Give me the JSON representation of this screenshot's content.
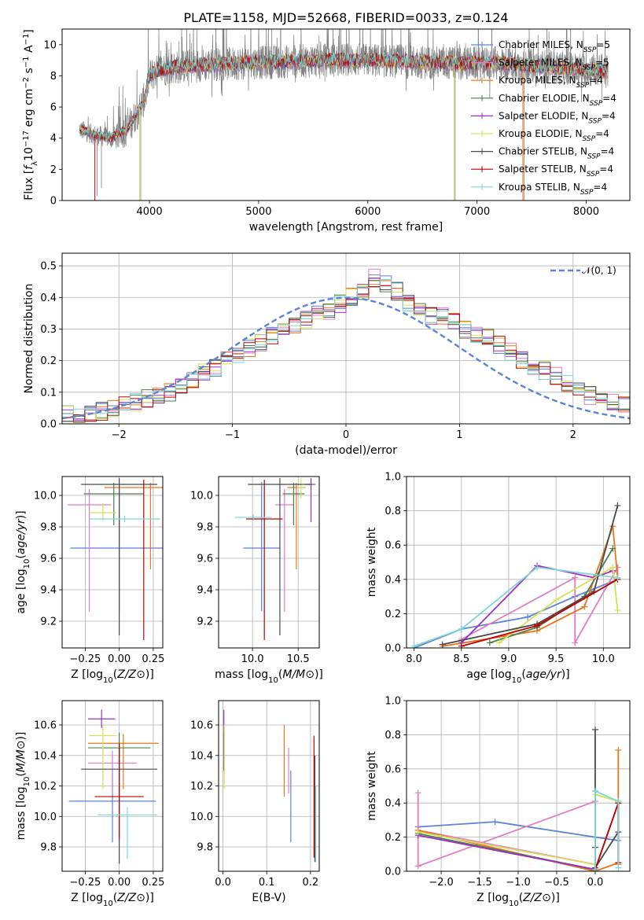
{
  "title": "PLATE=1158, MJD=52668, FIBERID=0033, z=0.124",
  "colors": {
    "Chabrier MILES": "#5b84d6",
    "Salpeter MILES": "#e07fbf",
    "Kroupa MILES": "#e8761f",
    "Chabrier ELODIE": "#4d7d4d",
    "Salpeter ELODIE": "#9b30c9",
    "Kroupa ELODIE": "#d4e05a",
    "Chabrier STELIB": "#4a4a4a",
    "Salpeter STELIB": "#c00000",
    "Kroupa STELIB": "#7fd6d6",
    "data": "#808080",
    "normal": "#5b84d6"
  },
  "chart_data": [
    {
      "id": "spectrum",
      "type": "line",
      "title": "PLATE=1158, MJD=52668, FIBERID=0033, z=0.124",
      "xlabel": "wavelength [Angstrom, rest frame]",
      "ylabel": "Flux [f_λ 10^-17 erg cm^-2 s^-1 A^-1]",
      "xlim": [
        3200,
        8400
      ],
      "ylim": [
        0,
        11
      ],
      "xticks": [
        4000,
        5000,
        6000,
        7000,
        8000
      ],
      "yticks": [
        0,
        2,
        4,
        6,
        8,
        10
      ],
      "legend_position": "upper-right",
      "legend": [
        {
          "base": "Chabrier MILES, N",
          "sub": "SSP",
          "suffix": "=5"
        },
        {
          "base": "Salpeter MILES, N",
          "sub": "SSP",
          "suffix": "=5"
        },
        {
          "base": "Kroupa MILES, N",
          "sub": "SSP",
          "suffix": "=4"
        },
        {
          "base": "Chabrier ELODIE, N",
          "sub": "SSP",
          "suffix": "=4"
        },
        {
          "base": "Salpeter ELODIE, N",
          "sub": "SSP",
          "suffix": "=4"
        },
        {
          "base": "Kroupa ELODIE, N",
          "sub": "SSP",
          "suffix": "=4"
        },
        {
          "base": "Chabrier STELIB, N",
          "sub": "SSP",
          "suffix": "=4"
        },
        {
          "base": "Salpeter STELIB, N",
          "sub": "SSP",
          "suffix": "=4"
        },
        {
          "base": "Kroupa STELIB, N",
          "sub": "SSP",
          "suffix": "=4"
        }
      ],
      "continuum_knots": [
        [
          3350,
          4.6
        ],
        [
          3500,
          4.2
        ],
        [
          3650,
          4.0
        ],
        [
          3800,
          4.6
        ],
        [
          3900,
          5.8
        ],
        [
          3960,
          6.6
        ],
        [
          4000,
          8.0
        ],
        [
          4100,
          8.4
        ],
        [
          4300,
          8.6
        ],
        [
          4500,
          8.7
        ],
        [
          4800,
          8.8
        ],
        [
          5200,
          8.9
        ],
        [
          5600,
          9.0
        ],
        [
          6000,
          9.0
        ],
        [
          6400,
          8.9
        ],
        [
          6800,
          8.8
        ],
        [
          7200,
          8.8
        ],
        [
          7600,
          8.6
        ],
        [
          8000,
          8.4
        ],
        [
          8200,
          8.3
        ]
      ],
      "data_range": [
        3360,
        8200
      ],
      "model_range": [
        3360,
        8200
      ],
      "spikes": [
        [
          3520,
          0.3
        ],
        [
          3560,
          0.8
        ],
        [
          3920,
          0.0
        ],
        [
          6800,
          0.0
        ],
        [
          7430,
          0.0
        ]
      ]
    },
    {
      "id": "residuals",
      "type": "histogram",
      "xlabel": "(data-model)/error",
      "ylabel": "Normed distribution",
      "xlim": [
        -2.5,
        2.5
      ],
      "ylim": [
        0,
        0.54
      ],
      "xticks": [
        -2,
        -1,
        0,
        1,
        2
      ],
      "yticks": [
        0.0,
        0.1,
        0.2,
        0.3,
        0.4,
        0.5
      ],
      "grid": true,
      "legend_position": "upper-right",
      "legend": [
        "𝒩(0, 1)"
      ],
      "bin_width": 0.1,
      "bin_start": -2.6,
      "base_values": [
        0.03,
        0.03,
        0.03,
        0.03,
        0.04,
        0.05,
        0.06,
        0.07,
        0.08,
        0.09,
        0.1,
        0.12,
        0.14,
        0.16,
        0.18,
        0.2,
        0.22,
        0.24,
        0.26,
        0.28,
        0.3,
        0.31,
        0.33,
        0.35,
        0.36,
        0.38,
        0.4,
        0.42,
        0.46,
        0.44,
        0.42,
        0.38,
        0.36,
        0.34,
        0.34,
        0.32,
        0.3,
        0.28,
        0.27,
        0.25,
        0.23,
        0.2,
        0.18,
        0.17,
        0.15,
        0.13,
        0.11,
        0.09,
        0.08,
        0.07,
        0.06,
        0.05,
        0.05,
        0.04
      ]
    },
    {
      "id": "age-vs-Z",
      "type": "errorbar",
      "xlabel": "Z [log10(Z/Z⊙)]",
      "ylabel": "age [log10(age/yr)]",
      "xlim": [
        -0.42,
        0.32
      ],
      "ylim": [
        9.03,
        10.12
      ],
      "xticks": [
        -0.25,
        0.0,
        0.25
      ],
      "yticks": [
        9.2,
        9.4,
        9.6,
        9.8,
        10.0
      ],
      "grid": true,
      "points": [
        {
          "series": "Chabrier MILES",
          "x": 0.0,
          "xerr": 0.36,
          "y": 9.665,
          "yerr": [
            0.4,
            0.42
          ]
        },
        {
          "series": "Salpeter MILES",
          "x": -0.22,
          "xerr": 0.16,
          "y": 9.94,
          "yerr": [
            0.68,
            0.1
          ]
        },
        {
          "series": "Kroupa MILES",
          "x": 0.23,
          "xerr": 0.34,
          "y": 10.05,
          "yerr": [
            0.52,
            0.03
          ]
        },
        {
          "series": "Chabrier ELODIE",
          "x": -0.04,
          "xerr": 0.22,
          "y": 10.01,
          "yerr": [
            0.2,
            0.07
          ]
        },
        {
          "series": "Salpeter ELODIE",
          "x": -0.13,
          "xerr": 0.0,
          "y": 10.08,
          "yerr": [
            0.0,
            0.0
          ]
        },
        {
          "series": "Kroupa ELODIE",
          "x": -0.12,
          "xerr": 0.1,
          "y": 9.89,
          "yerr": [
            0.05,
            0.06
          ]
        },
        {
          "series": "Chabrier STELIB",
          "x": 0.0,
          "xerr": 0.28,
          "y": 10.07,
          "yerr": [
            0.96,
            0.04
          ]
        },
        {
          "series": "Salpeter STELIB",
          "x": 0.18,
          "xerr": 0.0,
          "y": 9.85,
          "yerr": [
            0.77,
            0.25
          ]
        },
        {
          "series": "Kroupa STELIB",
          "x": 0.04,
          "xerr": 0.26,
          "y": 9.85,
          "yerr": [
            0.02,
            0.02
          ]
        }
      ]
    },
    {
      "id": "age-vs-mass",
      "type": "errorbar",
      "xlabel": "mass [log10(M/M⊙)]",
      "ylabel": "",
      "xlim": [
        9.63,
        10.73
      ],
      "ylim": [
        9.03,
        10.12
      ],
      "xticks": [
        10.0,
        10.5
      ],
      "yticks": [
        9.2,
        9.4,
        9.6,
        9.8,
        10.0
      ],
      "grid": true,
      "points": [
        {
          "series": "Chabrier MILES",
          "x": 10.1,
          "xerr": 0.2,
          "y": 9.665,
          "yerr": [
            0.4,
            0.42
          ]
        },
        {
          "series": "Salpeter MILES",
          "x": 10.35,
          "xerr": 0.1,
          "y": 9.94,
          "yerr": [
            0.68,
            0.1
          ]
        },
        {
          "series": "Kroupa MILES",
          "x": 10.48,
          "xerr": 0.1,
          "y": 10.05,
          "yerr": [
            0.52,
            0.03
          ]
        },
        {
          "series": "Chabrier ELODIE",
          "x": 10.45,
          "xerr": 0.12,
          "y": 10.01,
          "yerr": [
            0.2,
            0.07
          ]
        },
        {
          "series": "Salpeter ELODIE",
          "x": 10.64,
          "xerr": 0.05,
          "y": 10.07,
          "yerr": [
            0.24,
            0.04
          ]
        },
        {
          "series": "Kroupa ELODIE",
          "x": 10.53,
          "xerr": 0.04,
          "y": 10.05,
          "yerr": [
            0.07,
            0.06
          ]
        },
        {
          "series": "Chabrier STELIB",
          "x": 10.3,
          "xerr": 0.35,
          "y": 10.07,
          "yerr": [
            0.96,
            0.04
          ]
        },
        {
          "series": "Salpeter STELIB",
          "x": 10.13,
          "xerr": 0.2,
          "y": 9.85,
          "yerr": [
            0.77,
            0.25
          ]
        },
        {
          "series": "Kroupa STELIB",
          "x": 10.01,
          "xerr": 0.2,
          "y": 9.86,
          "yerr": [
            0.02,
            0.02
          ]
        }
      ]
    },
    {
      "id": "weight-vs-age",
      "type": "line",
      "xlabel": "age [log10(age/yr)]",
      "ylabel": "mass weight",
      "xlim": [
        7.92,
        10.28
      ],
      "ylim": [
        0,
        1.0
      ],
      "xticks": [
        8.0,
        8.5,
        9.0,
        9.5,
        10.0
      ],
      "yticks": [
        0.0,
        0.2,
        0.4,
        0.6,
        0.8,
        1.0
      ],
      "grid": true,
      "series": [
        {
          "name": "Chabrier MILES",
          "x": [
            8.0,
            8.5,
            9.2,
            9.7,
            10.15
          ],
          "y": [
            0.0,
            0.11,
            0.18,
            0.3,
            0.4
          ]
        },
        {
          "name": "Salpeter MILES",
          "x": [
            8.5,
            9.7,
            9.7,
            10.15,
            10.15
          ],
          "y": [
            0.05,
            0.41,
            0.03,
            0.47,
            0.41
          ]
        },
        {
          "name": "Kroupa MILES",
          "x": [
            8.3,
            9.3,
            9.8,
            10.1,
            10.15
          ],
          "y": [
            0.01,
            0.1,
            0.24,
            0.71,
            0.41
          ]
        },
        {
          "name": "Chabrier ELODIE",
          "x": [
            8.8,
            9.3,
            9.8,
            10.1
          ],
          "y": [
            0.03,
            0.12,
            0.3,
            0.58
          ]
        },
        {
          "name": "Salpeter ELODIE",
          "x": [
            8.5,
            9.3,
            9.9,
            10.1
          ],
          "y": [
            0.03,
            0.48,
            0.41,
            0.45
          ]
        },
        {
          "name": "Kroupa ELODIE",
          "x": [
            8.9,
            9.5,
            10.1,
            10.15
          ],
          "y": [
            0.03,
            0.28,
            0.47,
            0.22
          ]
        },
        {
          "name": "Chabrier STELIB",
          "x": [
            8.3,
            9.3,
            9.9,
            10.15
          ],
          "y": [
            0.02,
            0.14,
            0.33,
            0.83
          ]
        },
        {
          "name": "Salpeter STELIB",
          "x": [
            8.5,
            9.3,
            10.15
          ],
          "y": [
            0.01,
            0.13,
            0.4
          ]
        },
        {
          "name": "Kroupa STELIB",
          "x": [
            8.0,
            8.5,
            9.3,
            10.15
          ],
          "y": [
            0.01,
            0.11,
            0.47,
            0.41
          ]
        }
      ]
    },
    {
      "id": "mass-vs-Z",
      "type": "errorbar",
      "xlabel": "Z [log10(Z/Z⊙)]",
      "ylabel": "mass [log10(M/M⊙)]",
      "xlim": [
        -0.42,
        0.32
      ],
      "ylim": [
        9.64,
        10.76
      ],
      "xticks": [
        -0.25,
        0.0,
        0.25
      ],
      "yticks": [
        9.8,
        10.0,
        10.2,
        10.4,
        10.6
      ],
      "grid": true,
      "points": [
        {
          "series": "Chabrier MILES",
          "x": -0.05,
          "xerr": 0.32,
          "y": 10.1,
          "yerr": [
            0.27,
            0.2
          ]
        },
        {
          "series": "Salpeter MILES",
          "x": -0.05,
          "xerr": 0.18,
          "y": 10.35,
          "yerr": [
            0.2,
            0.08
          ]
        },
        {
          "series": "Kroupa MILES",
          "x": 0.03,
          "xerr": 0.26,
          "y": 10.48,
          "yerr": [
            0.3,
            0.06
          ]
        },
        {
          "series": "Chabrier ELODIE",
          "x": 0.0,
          "xerr": 0.23,
          "y": 10.45,
          "yerr": [
            0.15,
            0.1
          ]
        },
        {
          "series": "Salpeter ELODIE",
          "x": -0.13,
          "xerr": 0.1,
          "y": 10.64,
          "yerr": [
            0.06,
            0.06
          ]
        },
        {
          "series": "Kroupa ELODIE",
          "x": -0.12,
          "xerr": 0.1,
          "y": 10.53,
          "yerr": [
            0.35,
            0.07
          ]
        },
        {
          "series": "Chabrier STELIB",
          "x": 0.0,
          "xerr": 0.28,
          "y": 10.31,
          "yerr": [
            0.62,
            0.15
          ]
        },
        {
          "series": "Salpeter STELIB",
          "x": 0.0,
          "xerr": 0.18,
          "y": 10.13,
          "yerr": [
            0.28,
            0.35
          ]
        },
        {
          "series": "Kroupa STELIB",
          "x": 0.06,
          "xerr": 0.22,
          "y": 10.01,
          "yerr": [
            0.29,
            0.05
          ]
        }
      ]
    },
    {
      "id": "mass-vs-EBV",
      "type": "errorbar",
      "xlabel": "E(B-V)",
      "ylabel": "",
      "xlim": [
        -0.01,
        0.22
      ],
      "ylim": [
        9.64,
        10.76
      ],
      "xticks": [
        0.0,
        0.1,
        0.2
      ],
      "yticks": [
        9.8,
        10.0,
        10.2,
        10.4,
        10.6
      ],
      "grid": true,
      "points": [
        {
          "series": "Chabrier MILES",
          "x": 0.155,
          "xerr": 0.0,
          "y": 10.1,
          "yerr": [
            0.27,
            0.2
          ]
        },
        {
          "series": "Salpeter MILES",
          "x": 0.15,
          "xerr": 0.0,
          "y": 10.35,
          "yerr": [
            0.2,
            0.1
          ]
        },
        {
          "series": "Kroupa MILES",
          "x": 0.14,
          "xerr": 0.0,
          "y": 10.48,
          "yerr": [
            0.35,
            0.12
          ]
        },
        {
          "series": "Chabrier ELODIE",
          "x": 0.002,
          "xerr": 0.0,
          "y": 10.45,
          "yerr": [
            0.15,
            0.1
          ]
        },
        {
          "series": "Salpeter ELODIE",
          "x": 0.002,
          "xerr": 0.0,
          "y": 10.6,
          "yerr": [
            0.3,
            0.1
          ]
        },
        {
          "series": "Kroupa ELODIE",
          "x": 0.003,
          "xerr": 0.0,
          "y": 10.53,
          "yerr": [
            0.35,
            0.07
          ]
        },
        {
          "series": "Chabrier STELIB",
          "x": 0.21,
          "xerr": 0.0,
          "y": 10.2,
          "yerr": [
            0.5,
            0.2
          ]
        },
        {
          "series": "Salpeter STELIB",
          "x": 0.208,
          "xerr": 0.0,
          "y": 10.13,
          "yerr": [
            0.4,
            0.4
          ]
        },
        {
          "series": "Kroupa STELIB",
          "x": 0.212,
          "xerr": 0.0,
          "y": 9.9,
          "yerr": [
            0.2,
            0.3
          ]
        }
      ]
    },
    {
      "id": "weight-vs-Z",
      "type": "line",
      "xlabel": "Z [log10(Z/Z⊙)]",
      "ylabel": "mass weight",
      "xlim": [
        -2.45,
        0.45
      ],
      "ylim": [
        0,
        1.0
      ],
      "xticks": [
        -2.0,
        -1.5,
        -1.0,
        -0.5,
        0.0
      ],
      "yticks": [
        0.0,
        0.2,
        0.4,
        0.6,
        0.8,
        1.0
      ],
      "grid": true,
      "series": [
        {
          "name": "Chabrier MILES",
          "x": [
            -2.3,
            -1.3,
            0.0,
            0.3
          ],
          "y": [
            0.26,
            0.29,
            0.2,
            0.18
          ]
        },
        {
          "name": "Salpeter MILES",
          "x": [
            -2.3,
            -2.3,
            0.0,
            0.0,
            -2.3
          ],
          "y": [
            0.46,
            0.03,
            0.41,
            0.04,
            0.24
          ]
        },
        {
          "name": "Kroupa MILES",
          "x": [
            -2.3,
            0.0,
            0.3,
            0.3,
            0.3
          ],
          "y": [
            0.24,
            0.0,
            0.05,
            0.71,
            0.04
          ]
        },
        {
          "name": "Chabrier ELODIE",
          "x": [
            -2.3,
            0.0,
            0.3
          ],
          "y": [
            0.22,
            0.01,
            0.4
          ]
        },
        {
          "name": "Salpeter ELODIE",
          "x": [
            -2.3,
            0.0,
            0.0
          ],
          "y": [
            0.21,
            0.01,
            0.47
          ]
        },
        {
          "name": "Kroupa ELODIE",
          "x": [
            -2.3,
            0.0,
            0.0,
            0.3
          ],
          "y": [
            0.23,
            0.04,
            0.45,
            0.41
          ]
        },
        {
          "name": "Chabrier STELIB",
          "x": [
            0.0,
            0.0,
            0.0,
            0.3,
            0.3
          ],
          "y": [
            0.83,
            0.14,
            0.02,
            0.23,
            0.4
          ]
        },
        {
          "name": "Salpeter STELIB",
          "x": [
            0.0,
            0.3,
            0.3
          ],
          "y": [
            0.01,
            0.4,
            0.05
          ]
        },
        {
          "name": "Kroupa STELIB",
          "x": [
            0.0,
            0.0,
            0.3,
            0.3
          ],
          "y": [
            0.01,
            0.47,
            0.41,
            0.02
          ]
        }
      ]
    }
  ]
}
